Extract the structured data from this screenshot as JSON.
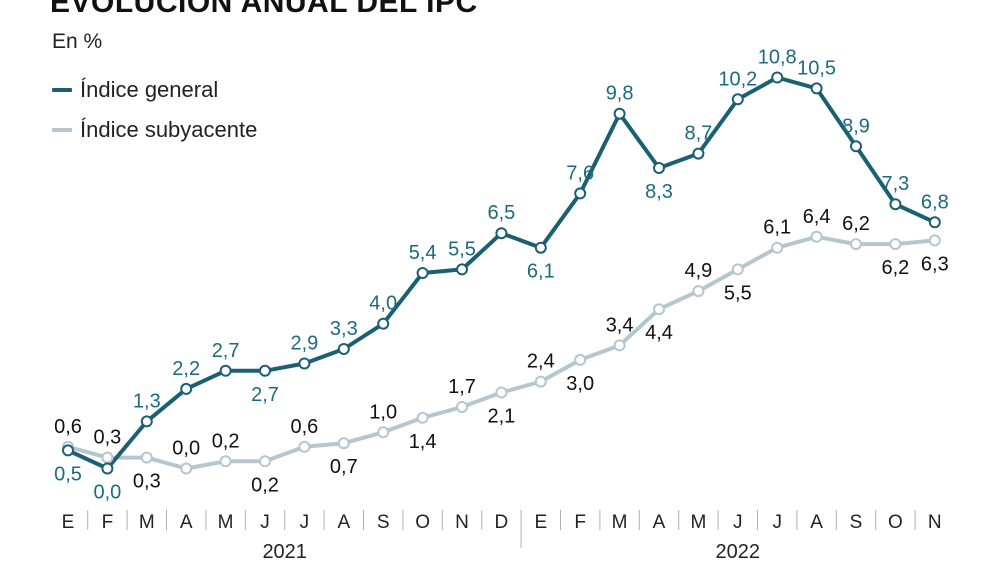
{
  "chart_data": {
    "type": "line",
    "title": "EVOLUCIÓN ANUAL DEL IPC",
    "subtitle": "En %",
    "categories": [
      "E",
      "F",
      "M",
      "A",
      "M",
      "J",
      "J",
      "A",
      "S",
      "O",
      "N",
      "D",
      "E",
      "F",
      "M",
      "A",
      "M",
      "J",
      "J",
      "A",
      "S",
      "O",
      "N"
    ],
    "years": [
      {
        "label": "2021",
        "months": 12
      },
      {
        "label": "2022",
        "months": 11
      }
    ],
    "series": [
      {
        "name": "Índice general",
        "color": "#1b5f73",
        "label_color": "#1b6b80",
        "values": [
          0.5,
          0.0,
          1.3,
          2.2,
          2.7,
          2.7,
          2.9,
          3.3,
          4.0,
          5.4,
          5.5,
          6.5,
          6.1,
          7.6,
          9.8,
          8.3,
          8.7,
          10.2,
          10.8,
          10.5,
          8.9,
          7.3,
          6.8
        ],
        "labels": [
          "0,5",
          "0,0",
          "1,3",
          "2,2",
          "2,7",
          "2,7",
          "2,9",
          "3,3",
          "4,0",
          "5,4",
          "5,5",
          "6,5",
          "6,1",
          "7,6",
          "9,8",
          "8,3",
          "8,7",
          "10,2",
          "10,8",
          "10,5",
          "8,9",
          "7,3",
          "6,8"
        ]
      },
      {
        "name": "Índice subyacente",
        "color": "#b5c6d0",
        "label_color": "#111111",
        "values": [
          0.6,
          0.3,
          0.3,
          0.0,
          0.2,
          0.2,
          0.6,
          0.7,
          1.0,
          1.4,
          1.7,
          2.1,
          2.4,
          3.0,
          3.4,
          4.4,
          4.9,
          5.5,
          6.1,
          6.4,
          6.2,
          6.2,
          6.3
        ],
        "labels": [
          "0,6",
          "0,3",
          "0,3",
          "0,0",
          "0,2",
          "0,2",
          "0,6",
          "0,7",
          "1,0",
          "1,4",
          "1,7",
          "2,1",
          "2,4",
          "3,0",
          "3,4",
          "4,4",
          "4,9",
          "5,5",
          "6,1",
          "6,4",
          "6,2",
          "6,2",
          "6,3"
        ]
      }
    ],
    "ylim": [
      0,
      11
    ],
    "grid": false,
    "legend_position": "top-left"
  }
}
